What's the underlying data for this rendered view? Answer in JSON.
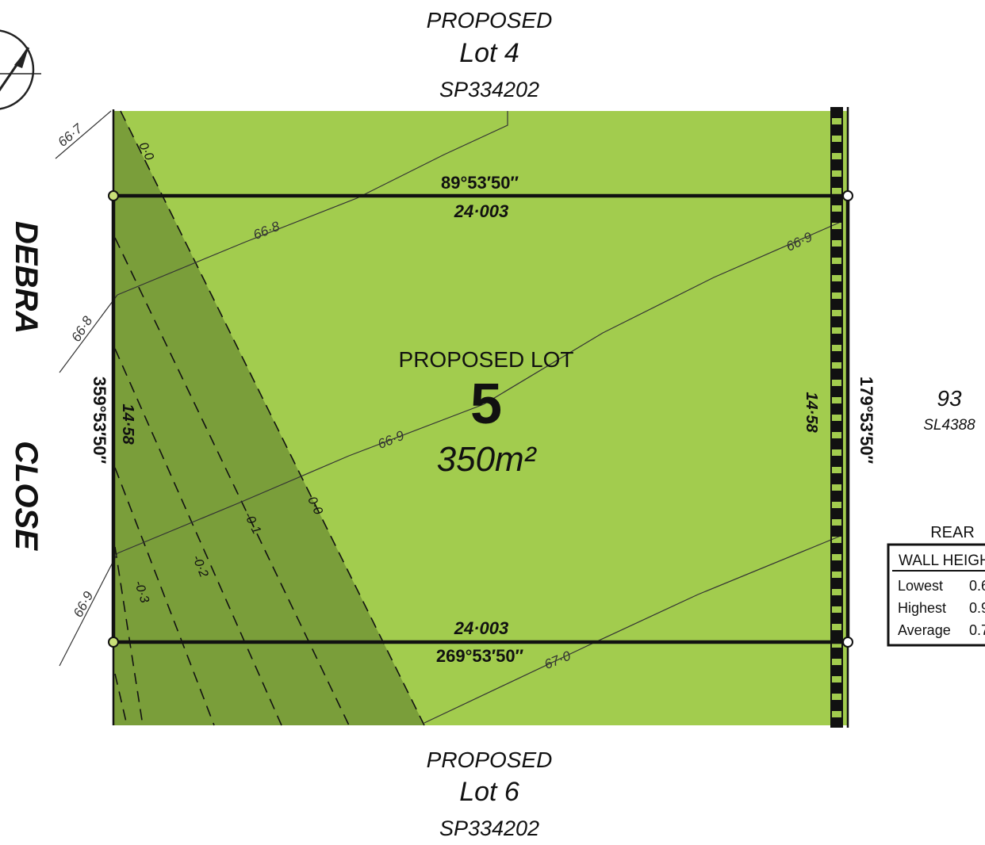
{
  "top_lot": {
    "proposed": "PROPOSED",
    "lot": "Lot 4",
    "plan": "SP334202"
  },
  "bottom_lot": {
    "proposed": "PROPOSED",
    "lot": "Lot 6",
    "plan": "SP334202"
  },
  "street": {
    "word1": "DEBRA",
    "word2": "CLOSE"
  },
  "subject_lot": {
    "heading": "PROPOSED LOT",
    "number": "5",
    "area": "350m²"
  },
  "neighbour": {
    "number": "93",
    "plan": "SL4388"
  },
  "bearings": {
    "top": "89°53′50″",
    "bottom": "269°53′50″",
    "left": "359°53′50″",
    "right": "179°53′50″"
  },
  "distances": {
    "top": "24·003",
    "bottom": "24·003",
    "left": "14·58",
    "right": "14·58"
  },
  "contours": {
    "c1_label": "66·7",
    "c2_label": "66·8",
    "c2_label_left": "66·8",
    "c3_label_right": "66·9",
    "c3_label": "66·9",
    "c3_label_left": "66·9",
    "c4_label": "67·0"
  },
  "cut_lines": {
    "l0": "0·0",
    "l0b": "0·0",
    "l1": "-0·1",
    "l2": "-0·2",
    "l3": "-0·3"
  },
  "wall_table": {
    "caption": "REAR",
    "header": "WALL HEIGH",
    "rows": [
      {
        "label": "Lowest",
        "value": "0.6"
      },
      {
        "label": "Highest",
        "value": "0.9"
      },
      {
        "label": "Average",
        "value": "0.7"
      }
    ]
  },
  "colors": {
    "lot_fill": "#a2cc4e",
    "cut_fill": "#7a9e3a",
    "boundary": "#111111"
  }
}
